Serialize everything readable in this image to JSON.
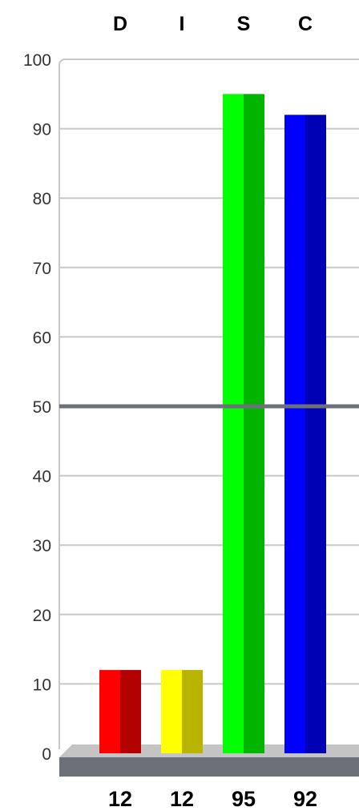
{
  "chart_data": {
    "type": "bar",
    "categories": [
      "D",
      "I",
      "S",
      "C"
    ],
    "values": [
      12,
      12,
      95,
      92
    ],
    "value_labels": [
      "12",
      "12",
      "95",
      "92"
    ],
    "y_ticks": [
      "0",
      "10",
      "20",
      "30",
      "40",
      "50",
      "60",
      "70",
      "80",
      "90",
      "100"
    ],
    "ylim": [
      0,
      100
    ],
    "reference_line": 50,
    "grid": true,
    "colors": {
      "D": {
        "front": "#ff0000",
        "side": "#b30000"
      },
      "I": {
        "front": "#ffff00",
        "side": "#b8b400"
      },
      "S": {
        "front": "#00ff00",
        "side": "#00b400"
      },
      "C": {
        "front": "#0000ff",
        "side": "#0000b4"
      },
      "grid": "#c8c8c8",
      "reference": "#6b7079",
      "base_top": "#c4c4c4",
      "base_front": "#6b7079",
      "axis_text": "#333333",
      "label_text": "#000000"
    }
  }
}
